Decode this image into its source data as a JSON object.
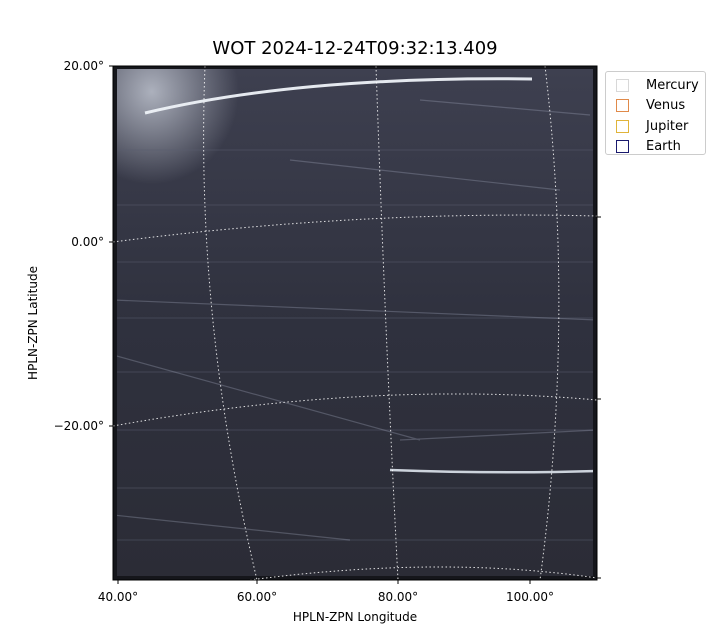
{
  "chart_data": {
    "type": "image",
    "title": "WOT 2024-12-24T09:32:13.409",
    "xlabel": "HPLN-ZPN Longitude",
    "ylabel": "HPLN-ZPN Latitude",
    "x_ticks": [
      "40.00°",
      "60.00°",
      "80.00°",
      "100.00°"
    ],
    "y_ticks": [
      "20.00°",
      "0.00°",
      "−20.00°"
    ],
    "grid": true,
    "colormap": "bone",
    "legend_position": "upper-right-outside",
    "legend": [
      {
        "name": "Mercury",
        "color": "#d8d8d8"
      },
      {
        "name": "Venus",
        "color": "#e08a4a"
      },
      {
        "name": "Jupiter",
        "color": "#e0b43a"
      },
      {
        "name": "Earth",
        "color": "#1a1a6e"
      }
    ]
  }
}
